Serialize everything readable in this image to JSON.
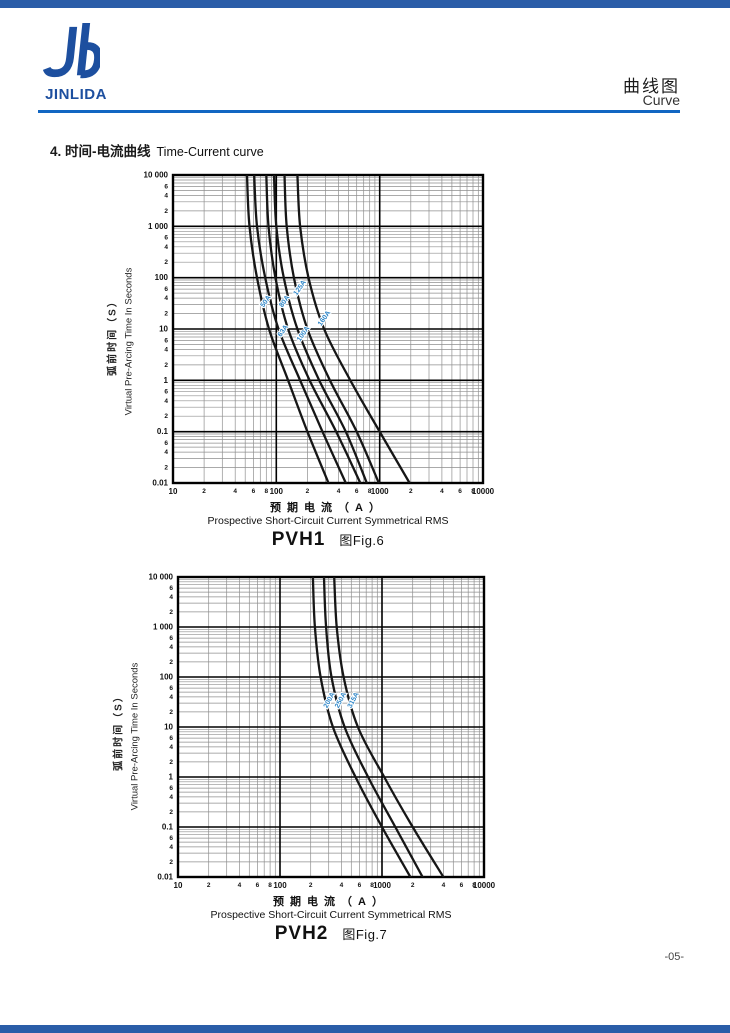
{
  "page": {
    "number": "-05-",
    "background": "#ffffff"
  },
  "colors": {
    "brand_blue": "#1d4f9f",
    "rule_blue": "#1266c2",
    "bar_blue": "#2a5da8",
    "curve_black": "#161616",
    "curve_label_blue": "#2e86c8",
    "grid_minor": "#8f8f8f",
    "grid_major": "#000000"
  },
  "header": {
    "logo_text": "JINLIDA",
    "title_cn": "曲线图",
    "title_en": "Curve"
  },
  "section": {
    "heading_cn": "4. 时间-电流曲线",
    "heading_en": "Time-Current curve"
  },
  "chart_data": [
    {
      "type": "line",
      "title": "PVH1",
      "fig_label": "图Fig.6",
      "xlabel_cn": "预期电流（A）",
      "xlabel_en": "Prospective Short-Circuit Current Symmetrical RMS",
      "ylabel_cn": "弧前时间（S）",
      "ylabel_en": "Virtual Pre-Arcing Time In Seconds",
      "x_scale": "log",
      "y_scale": "log",
      "xlim": [
        10,
        10000
      ],
      "ylim": [
        0.01,
        10000
      ],
      "grid": true,
      "x_major_labels": [
        "10",
        "100",
        "1000",
        "10000"
      ],
      "x_minor_labels": [
        "2",
        "4",
        "6",
        "8"
      ],
      "y_major_labels": [
        "10 000",
        "1 000",
        "100",
        "10",
        "1",
        "0.1",
        "0.01"
      ],
      "y_minor_labels": [
        "6",
        "4",
        "2"
      ],
      "t_decades": [
        10000,
        1000,
        100,
        10,
        1,
        0.1,
        0.01
      ],
      "series": [
        {
          "name": "50A",
          "currents": [
            52,
            55,
            65,
            85,
            130,
            200,
            320
          ],
          "label_t": 30
        },
        {
          "name": "63A",
          "currents": [
            61,
            65,
            78,
            105,
            170,
            280,
            470
          ],
          "label_t": 8
        },
        {
          "name": "80A",
          "currents": [
            80,
            84,
            98,
            130,
            210,
            380,
            650
          ],
          "label_t": 30
        },
        {
          "name": "100A",
          "currents": [
            95,
            100,
            118,
            160,
            260,
            470,
            750
          ],
          "label_t": 7
        },
        {
          "name": "125A",
          "currents": [
            120,
            126,
            148,
            200,
            330,
            600,
            980
          ],
          "label_t": 55
        },
        {
          "name": "160A",
          "currents": [
            160,
            170,
            205,
            290,
            520,
            1000,
            1950
          ],
          "label_t": 14
        }
      ]
    },
    {
      "type": "line",
      "title": "PVH2",
      "fig_label": "图Fig.7",
      "xlabel_cn": "预期电流（A）",
      "xlabel_en": "Prospective Short-Circuit Current Symmetrical RMS",
      "ylabel_cn": "弧前时间（S）",
      "ylabel_en": "Virtual Pre-Arcing Time In Seconds",
      "x_scale": "log",
      "y_scale": "log",
      "xlim": [
        10,
        10000
      ],
      "ylim": [
        0.01,
        10000
      ],
      "grid": true,
      "x_major_labels": [
        "10",
        "100",
        "1000",
        "10000"
      ],
      "x_minor_labels": [
        "2",
        "4",
        "6",
        "8"
      ],
      "y_major_labels": [
        "10 000",
        "1 000",
        "100",
        "10",
        "1",
        "0.1",
        "0.01"
      ],
      "y_minor_labels": [
        "6",
        "4",
        "2"
      ],
      "t_decades": [
        10000,
        1000,
        100,
        10,
        1,
        0.1,
        0.01
      ],
      "series": [
        {
          "name": "200A",
          "currents": [
            210,
            220,
            250,
            330,
            550,
            1000,
            1900
          ],
          "label_t": 30
        },
        {
          "name": "250A",
          "currents": [
            270,
            283,
            320,
            430,
            730,
            1350,
            2500
          ],
          "label_t": 30
        },
        {
          "name": "315A",
          "currents": [
            340,
            360,
            420,
            580,
            1050,
            2000,
            4000
          ],
          "label_t": 30
        }
      ]
    }
  ]
}
